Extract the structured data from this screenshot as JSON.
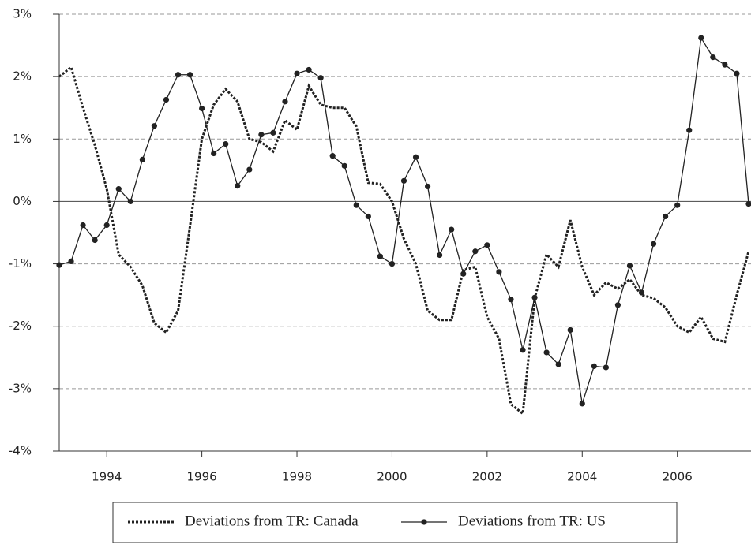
{
  "chart_data": {
    "type": "line",
    "x": [
      1993,
      1993.25,
      1993.5,
      1993.75,
      1994,
      1994.25,
      1994.5,
      1994.75,
      1995,
      1995.25,
      1995.5,
      1995.75,
      1996,
      1996.25,
      1996.5,
      1996.75,
      1997,
      1997.25,
      1997.5,
      1997.75,
      1998,
      1998.25,
      1998.5,
      1998.75,
      1999,
      1999.25,
      1999.5,
      1999.75,
      2000,
      2000.25,
      2000.5,
      2000.75,
      2001,
      2001.25,
      2001.5,
      2001.75,
      2002,
      2002.25,
      2002.5,
      2002.75,
      2003,
      2003.25,
      2003.5,
      2003.75,
      2004,
      2004.25,
      2004.5,
      2004.75,
      2005,
      2005.25,
      2005.5,
      2005.75,
      2006,
      2006.25,
      2006.5,
      2006.75,
      2007,
      2007.25,
      2007.5
    ],
    "series": [
      {
        "name": "Deviations from TR: Canada",
        "color": "#222222",
        "line_style": "dotted",
        "marker": false,
        "values": [
          2.0,
          2.15,
          1.5,
          0.9,
          0.2,
          -0.85,
          -1.05,
          -1.35,
          -1.95,
          -2.1,
          -1.75,
          -0.4,
          1.0,
          1.55,
          1.8,
          1.6,
          1.0,
          0.95,
          0.8,
          1.3,
          1.15,
          1.85,
          1.55,
          1.5,
          1.5,
          1.2,
          0.3,
          0.28,
          0.0,
          -0.6,
          -1.0,
          -1.75,
          -1.9,
          -1.9,
          -1.1,
          -1.05,
          -1.85,
          -2.2,
          -3.25,
          -3.4,
          -1.55,
          -0.85,
          -1.05,
          -0.3,
          -1.05,
          -1.5,
          -1.3,
          -1.4,
          -1.25,
          -1.5,
          -1.55,
          -1.7,
          -2.0,
          -2.1,
          -1.85,
          -2.2,
          -2.25,
          -1.5,
          -0.8
        ]
      },
      {
        "name": "Deviations from TR: US",
        "color": "#222222",
        "line_style": "solid",
        "marker": true,
        "values": [
          -1.02,
          -0.96,
          -0.38,
          -0.62,
          -0.38,
          0.2,
          0.0,
          0.67,
          1.21,
          1.63,
          2.03,
          2.03,
          1.49,
          0.77,
          0.92,
          0.25,
          0.51,
          1.07,
          1.1,
          1.6,
          2.05,
          2.11,
          1.98,
          0.73,
          0.57,
          -0.06,
          -0.24,
          -0.88,
          -1.0,
          0.33,
          0.71,
          0.24,
          -0.86,
          -0.45,
          -1.16,
          -0.8,
          -0.7,
          -1.13,
          -1.57,
          -2.38,
          -1.54,
          -2.42,
          -2.61,
          -2.06,
          -3.24,
          -2.64,
          -2.66,
          -1.66,
          -1.03,
          -1.46,
          -0.68,
          -0.24,
          -0.06,
          1.14,
          2.62,
          2.31,
          2.19,
          2.05,
          -0.04
        ]
      }
    ],
    "xlim": [
      1993,
      2007.55
    ],
    "xticks": [
      1994,
      1996,
      1998,
      2000,
      2002,
      2004,
      2006
    ],
    "ylim": [
      -4,
      3
    ],
    "yticks": [
      {
        "value": -4,
        "label": "-4%"
      },
      {
        "value": -3,
        "label": "-3%"
      },
      {
        "value": -2,
        "label": "-2%"
      },
      {
        "value": -1,
        "label": "-1%"
      },
      {
        "value": 0,
        "label": "0%"
      },
      {
        "value": 1,
        "label": "1%"
      },
      {
        "value": 2,
        "label": "2%"
      },
      {
        "value": 3,
        "label": "3%"
      }
    ],
    "grid": true,
    "legend": "bottom"
  }
}
